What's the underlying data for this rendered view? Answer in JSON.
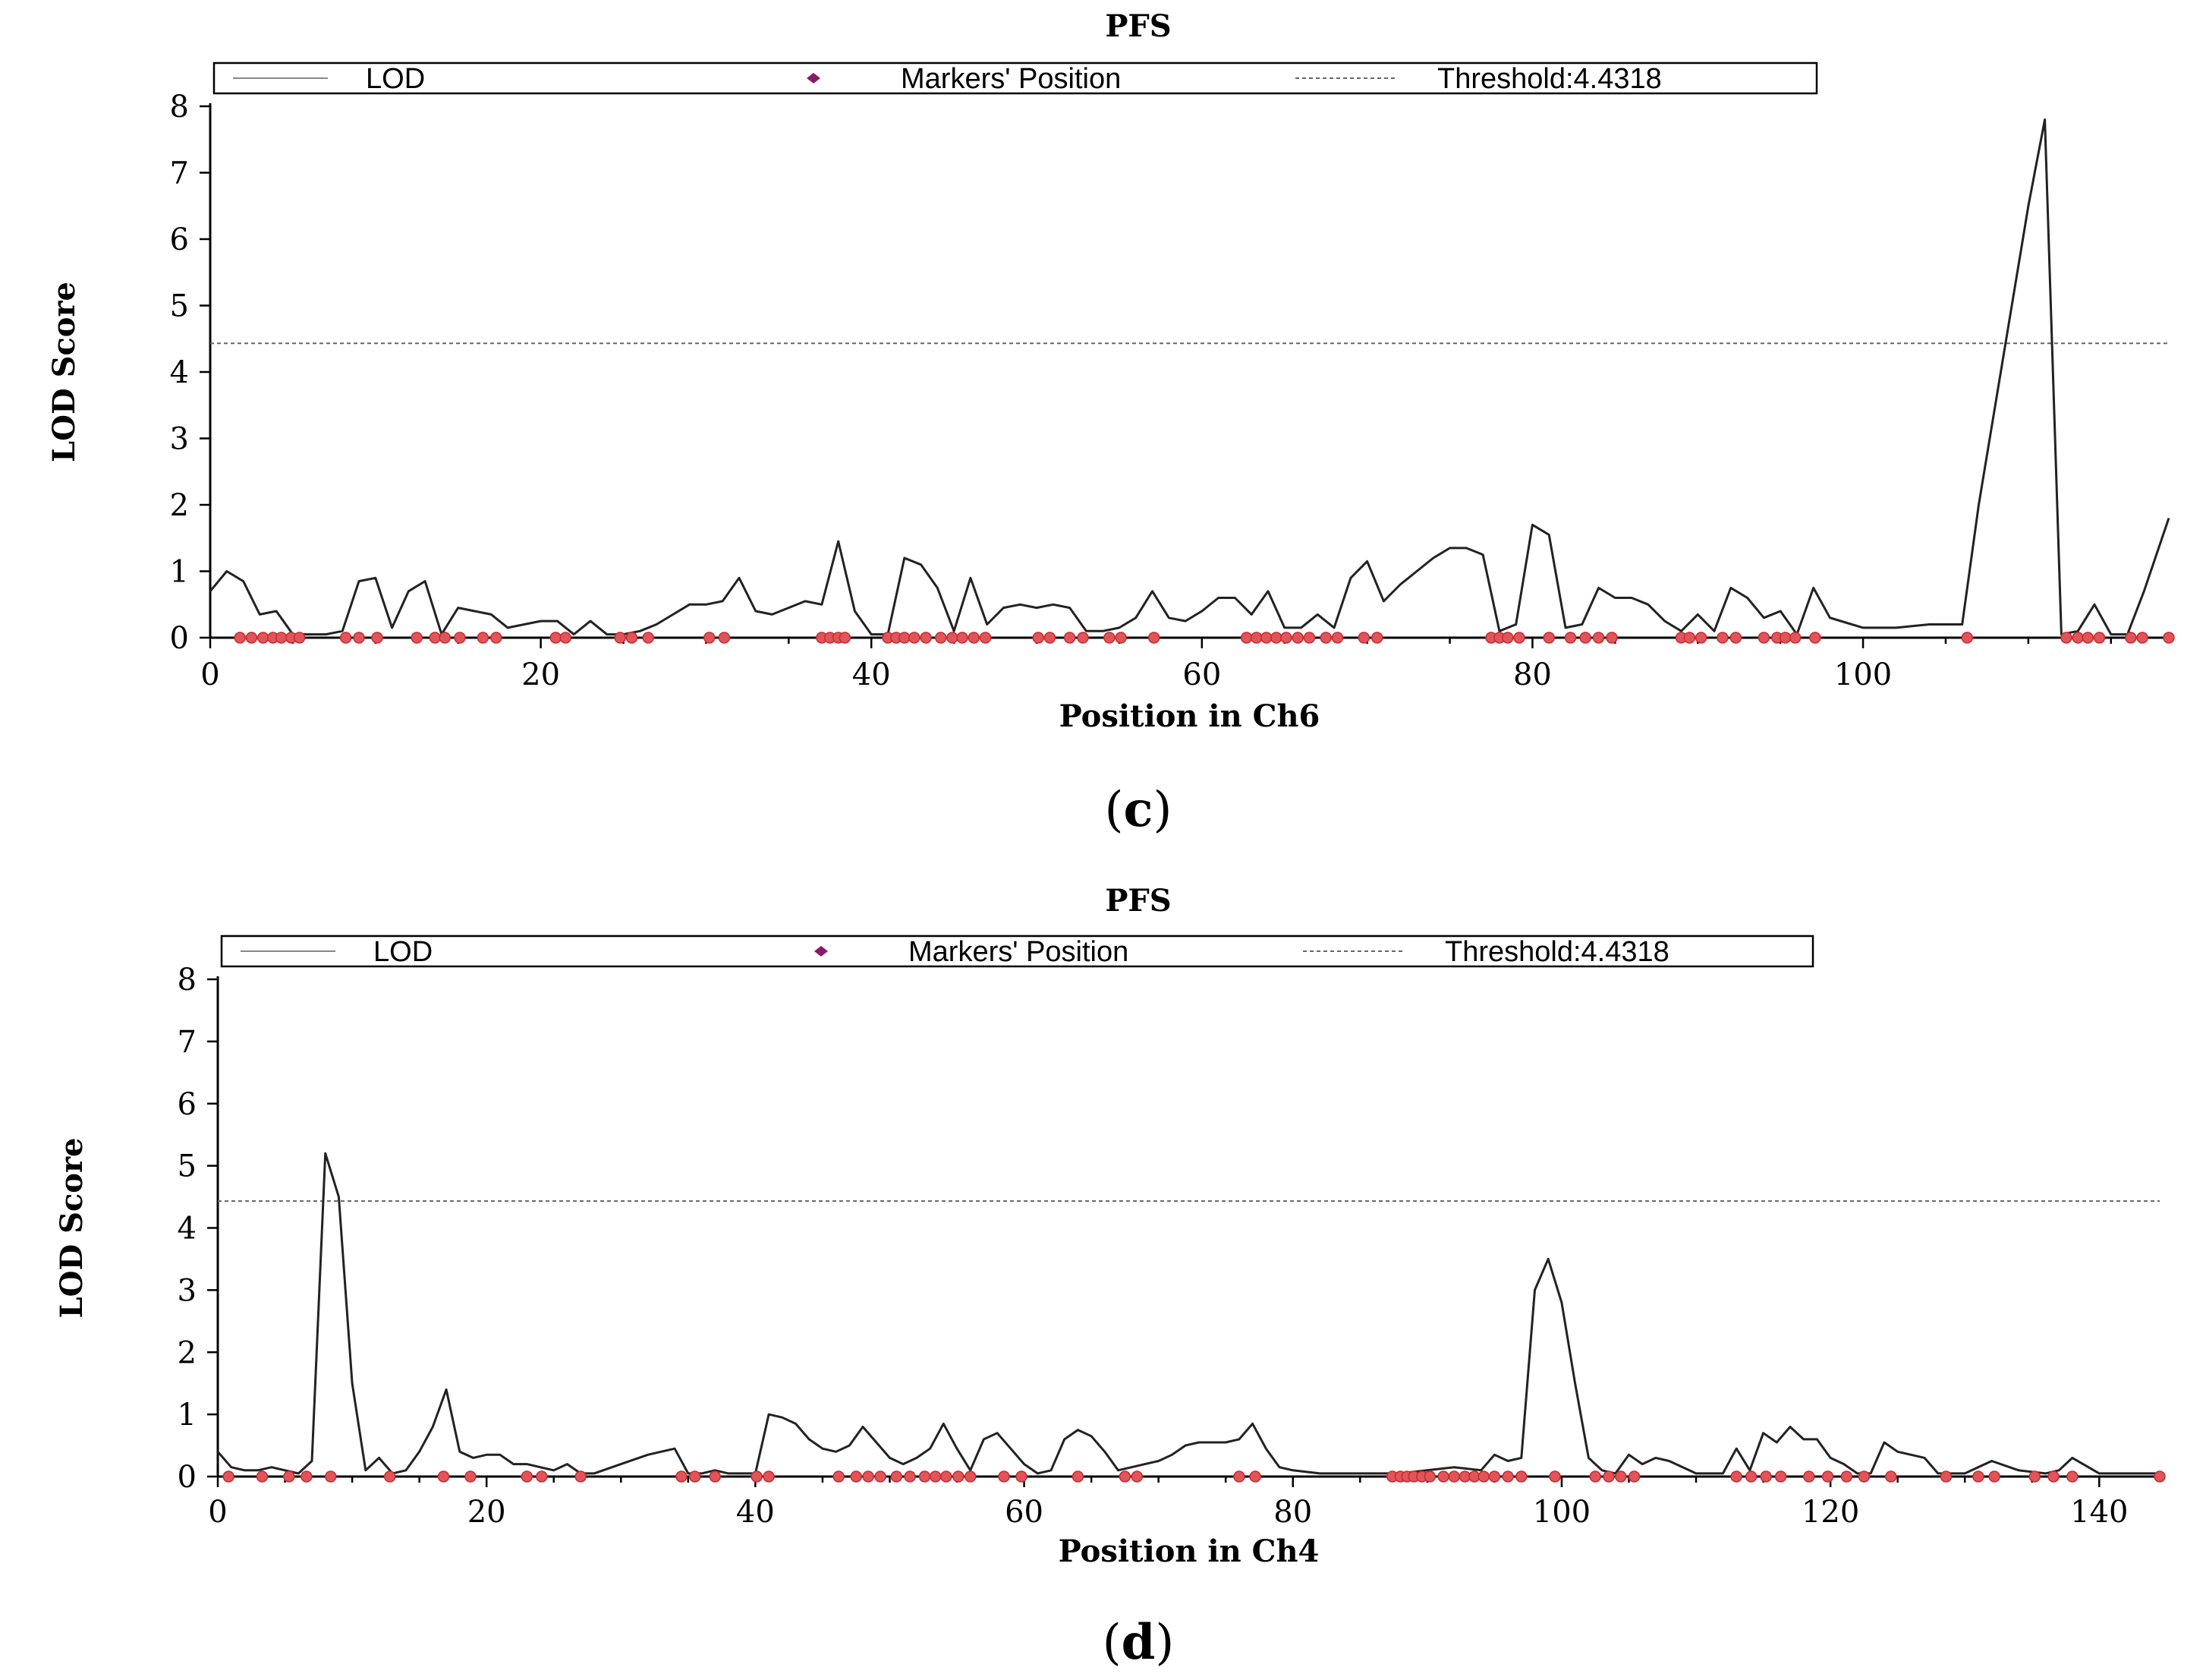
{
  "colors": {
    "lod_line": "#222222",
    "marker_fill": "#e0555a",
    "marker_stroke": "#c92a2f",
    "legend_marker": "#8b1a6b",
    "threshold": "#666666"
  },
  "chart_data": [
    {
      "type": "line",
      "panel_label": "c",
      "title": "PFS",
      "xlabel": "Position in Ch6",
      "ylabel": "LOD Score",
      "xlim": [
        0,
        118.5
      ],
      "ylim": [
        0,
        8
      ],
      "xticks": [
        0,
        20,
        40,
        60,
        80,
        100
      ],
      "yticks": [
        0,
        1,
        2,
        3,
        4,
        5,
        6,
        7,
        8
      ],
      "grid": false,
      "legend_position": "top",
      "legend": [
        "LOD",
        "Markers' Position",
        "Threshold:4.4318"
      ],
      "threshold": 4.4318,
      "series": [
        {
          "name": "LOD",
          "x": [
            0,
            1,
            2,
            3,
            4,
            5,
            6,
            7,
            8,
            9,
            10,
            11,
            12,
            13,
            14,
            15,
            16,
            17,
            18,
            19,
            20,
            21,
            22,
            23,
            24,
            25,
            26,
            27,
            28,
            29,
            30,
            31,
            32,
            33,
            34,
            35,
            36,
            37,
            38,
            39,
            40,
            41,
            42,
            43,
            44,
            45,
            46,
            47,
            48,
            49,
            50,
            51,
            52,
            53,
            54,
            55,
            56,
            57,
            58,
            59,
            60,
            61,
            62,
            63,
            64,
            65,
            66,
            67,
            68,
            69,
            70,
            71,
            72,
            73,
            74,
            75,
            76,
            77,
            78,
            79,
            80,
            81,
            82,
            83,
            84,
            85,
            86,
            87,
            88,
            89,
            90,
            91,
            92,
            93,
            94,
            95,
            96,
            97,
            98,
            100,
            102,
            104,
            106,
            107,
            108,
            109,
            110,
            111,
            112,
            113,
            114,
            115,
            116,
            117,
            118.5
          ],
          "y": [
            0.7,
            1.0,
            0.85,
            0.35,
            0.4,
            0.05,
            0.05,
            0.05,
            0.1,
            0.85,
            0.9,
            0.15,
            0.7,
            0.85,
            0.05,
            0.45,
            0.4,
            0.35,
            0.15,
            0.2,
            0.25,
            0.25,
            0.05,
            0.25,
            0.05,
            0.05,
            0.1,
            0.2,
            0.35,
            0.5,
            0.5,
            0.55,
            0.9,
            0.4,
            0.35,
            0.45,
            0.55,
            0.5,
            1.45,
            0.4,
            0.05,
            0.05,
            1.2,
            1.1,
            0.75,
            0.1,
            0.9,
            0.2,
            0.45,
            0.5,
            0.45,
            0.5,
            0.45,
            0.1,
            0.1,
            0.15,
            0.3,
            0.7,
            0.3,
            0.25,
            0.4,
            0.6,
            0.6,
            0.35,
            0.7,
            0.15,
            0.15,
            0.35,
            0.15,
            0.9,
            1.15,
            0.55,
            0.8,
            1.0,
            1.2,
            1.35,
            1.35,
            1.25,
            0.1,
            0.2,
            1.7,
            1.55,
            0.15,
            0.2,
            0.75,
            0.6,
            0.6,
            0.5,
            0.25,
            0.1,
            0.35,
            0.1,
            0.75,
            0.6,
            0.3,
            0.4,
            0.05,
            0.75,
            0.3,
            0.15,
            0.15,
            0.2,
            0.2,
            2.0,
            3.5,
            5.0,
            6.5,
            7.8,
            0.05,
            0.1,
            0.5,
            0.05,
            0.05,
            0.7,
            1.8
          ]
        },
        {
          "name": "Markers' Position",
          "x": [
            1.8,
            2.5,
            3.2,
            3.8,
            4.3,
            4.9,
            5.4,
            8.2,
            9.0,
            10.1,
            12.5,
            13.6,
            14.2,
            15.1,
            16.5,
            17.3,
            20.9,
            21.5,
            24.8,
            25.5,
            26.5,
            30.2,
            31.1,
            37.0,
            37.5,
            38.0,
            38.4,
            41.0,
            41.5,
            42.0,
            42.6,
            43.3,
            44.2,
            44.9,
            45.5,
            46.2,
            46.9,
            50.1,
            50.8,
            52.0,
            52.8,
            54.4,
            55.1,
            57.1,
            62.7,
            63.3,
            63.9,
            64.5,
            65.1,
            65.8,
            66.5,
            67.5,
            68.2,
            69.8,
            70.6,
            77.5,
            78.0,
            78.5,
            79.2,
            81.0,
            82.3,
            83.2,
            84.0,
            84.8,
            89.0,
            89.5,
            90.2,
            91.5,
            92.3,
            94.0,
            94.8,
            95.3,
            95.9,
            97.1,
            106.3,
            112.3,
            113.0,
            113.6,
            114.3,
            116.2,
            116.9,
            118.5
          ],
          "y": [
            0,
            0,
            0,
            0,
            0,
            0,
            0,
            0,
            0,
            0,
            0,
            0,
            0,
            0,
            0,
            0,
            0,
            0,
            0,
            0,
            0,
            0,
            0,
            0,
            0,
            0,
            0,
            0,
            0,
            0,
            0,
            0,
            0,
            0,
            0,
            0,
            0,
            0,
            0,
            0,
            0,
            0,
            0,
            0,
            0,
            0,
            0,
            0,
            0,
            0,
            0,
            0,
            0,
            0,
            0,
            0,
            0,
            0,
            0,
            0,
            0,
            0,
            0,
            0,
            0,
            0,
            0,
            0,
            0,
            0,
            0,
            0,
            0,
            0,
            0,
            0,
            0,
            0,
            0,
            0,
            0,
            0
          ]
        }
      ]
    },
    {
      "type": "line",
      "panel_label": "d",
      "title": "PFS",
      "xlabel": "Position in Ch4",
      "ylabel": "LOD Score",
      "xlim": [
        0,
        144.5
      ],
      "ylim": [
        0,
        8
      ],
      "xticks": [
        0,
        20,
        40,
        60,
        80,
        100,
        120,
        140
      ],
      "yticks": [
        0,
        1,
        2,
        3,
        4,
        5,
        6,
        7,
        8
      ],
      "grid": false,
      "legend_position": "top",
      "legend": [
        "LOD",
        "Markers' Position",
        "Threshold:4.4318"
      ],
      "threshold": 4.4318,
      "series": [
        {
          "name": "LOD",
          "x": [
            0,
            1,
            2,
            3,
            4,
            5,
            6,
            7,
            8,
            9,
            10,
            11,
            12,
            13,
            14,
            15,
            16,
            17,
            18,
            19,
            20,
            21,
            22,
            23,
            24,
            25,
            26,
            27,
            28,
            30,
            32,
            34,
            35,
            36,
            37,
            38,
            39,
            40,
            41,
            42,
            43,
            44,
            45,
            46,
            47,
            48,
            49,
            50,
            51,
            52,
            53,
            54,
            55,
            56,
            57,
            58,
            59,
            60,
            61,
            62,
            63,
            64,
            65,
            66,
            67,
            68,
            69,
            70,
            71,
            72,
            73,
            74,
            75,
            76,
            77,
            78,
            79,
            80,
            82,
            84,
            86,
            88,
            90,
            92,
            94,
            95,
            96,
            97,
            98,
            99,
            100,
            101,
            102,
            103,
            104,
            105,
            106,
            107,
            108,
            110,
            112,
            113,
            114,
            115,
            116,
            117,
            118,
            119,
            120,
            121,
            122,
            123,
            124,
            125,
            126,
            127,
            128,
            130,
            132,
            134,
            136,
            137,
            138,
            140,
            142,
            144.5
          ],
          "y": [
            0.4,
            0.15,
            0.1,
            0.1,
            0.15,
            0.1,
            0.05,
            0.25,
            5.2,
            4.5,
            1.5,
            0.1,
            0.3,
            0.05,
            0.1,
            0.4,
            0.8,
            1.4,
            0.4,
            0.3,
            0.35,
            0.35,
            0.2,
            0.2,
            0.15,
            0.1,
            0.2,
            0.05,
            0.05,
            0.2,
            0.35,
            0.45,
            0.05,
            0.05,
            0.1,
            0.05,
            0.05,
            0.05,
            1.0,
            0.95,
            0.85,
            0.6,
            0.45,
            0.4,
            0.5,
            0.8,
            0.55,
            0.3,
            0.2,
            0.3,
            0.45,
            0.85,
            0.45,
            0.1,
            0.6,
            0.7,
            0.45,
            0.2,
            0.05,
            0.1,
            0.6,
            0.75,
            0.65,
            0.4,
            0.1,
            0.15,
            0.2,
            0.25,
            0.35,
            0.5,
            0.55,
            0.55,
            0.55,
            0.6,
            0.85,
            0.45,
            0.15,
            0.1,
            0.05,
            0.05,
            0.05,
            0.05,
            0.1,
            0.15,
            0.1,
            0.35,
            0.25,
            0.3,
            3.0,
            3.5,
            2.8,
            1.5,
            0.3,
            0.1,
            0.05,
            0.35,
            0.2,
            0.3,
            0.25,
            0.05,
            0.05,
            0.45,
            0.1,
            0.7,
            0.55,
            0.8,
            0.6,
            0.6,
            0.3,
            0.2,
            0.05,
            0.05,
            0.55,
            0.4,
            0.35,
            0.3,
            0.05,
            0.05,
            0.25,
            0.1,
            0.05,
            0.1,
            0.3,
            0.05,
            0.05,
            0.05
          ]
        },
        {
          "name": "Markers' Position",
          "x": [
            0.8,
            3.3,
            5.3,
            6.6,
            8.4,
            12.8,
            16.8,
            18.8,
            23.0,
            24.1,
            27.0,
            34.5,
            35.5,
            37.0,
            40.1,
            41.0,
            46.2,
            47.5,
            48.4,
            49.3,
            50.5,
            51.5,
            52.6,
            53.4,
            54.2,
            55.1,
            56.0,
            58.5,
            59.8,
            64.0,
            67.5,
            68.4,
            76.0,
            77.2,
            87.4,
            88.0,
            88.5,
            89.0,
            89.6,
            90.2,
            91.2,
            92.0,
            92.8,
            93.5,
            94.2,
            95.0,
            96.0,
            97.0,
            99.5,
            102.5,
            103.5,
            104.4,
            105.4,
            113.0,
            114.1,
            115.2,
            116.3,
            118.4,
            119.8,
            121.2,
            122.5,
            124.5,
            128.6,
            131.0,
            132.2,
            135.2,
            136.6,
            138.0,
            144.5
          ],
          "y": [
            0,
            0,
            0,
            0,
            0,
            0,
            0,
            0,
            0,
            0,
            0,
            0,
            0,
            0,
            0,
            0,
            0,
            0,
            0,
            0,
            0,
            0,
            0,
            0,
            0,
            0,
            0,
            0,
            0,
            0,
            0,
            0,
            0,
            0,
            0,
            0,
            0,
            0,
            0,
            0,
            0,
            0,
            0,
            0,
            0,
            0,
            0,
            0,
            0,
            0,
            0,
            0,
            0,
            0,
            0,
            0,
            0,
            0,
            0,
            0,
            0,
            0,
            0,
            0,
            0,
            0,
            0,
            0,
            0
          ]
        }
      ]
    }
  ]
}
